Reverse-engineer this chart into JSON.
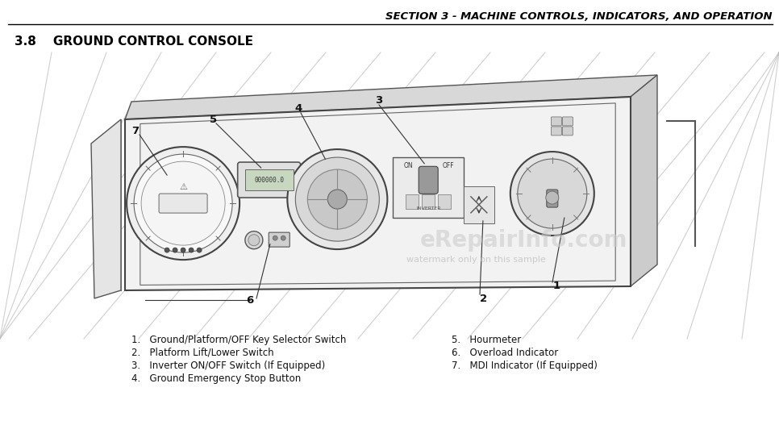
{
  "header_text": "SECTION 3 - MACHINE CONTROLS, INDICATORS, AND OPERATION",
  "section_title": "3.8    GROUND CONTROL CONSOLE",
  "background_color": "#ffffff",
  "header_color": "#000000",
  "list_left": [
    "1.   Ground/Platform/OFF Key Selector Switch",
    "2.   Platform Lift/Lower Switch",
    "3.   Inverter ON/OFF Switch (If Equipped)",
    "4.   Ground Emergency Stop Button"
  ],
  "list_right": [
    "5.   Hourmeter",
    "6.   Overload Indicator",
    "7.   MDI Indicator (If Equipped)"
  ],
  "watermark_text": "watermark only on this sample",
  "watermark_color": "#bbbbbb",
  "site_watermark": "eRepairInfo.com",
  "site_watermark_color": "#cccccc"
}
